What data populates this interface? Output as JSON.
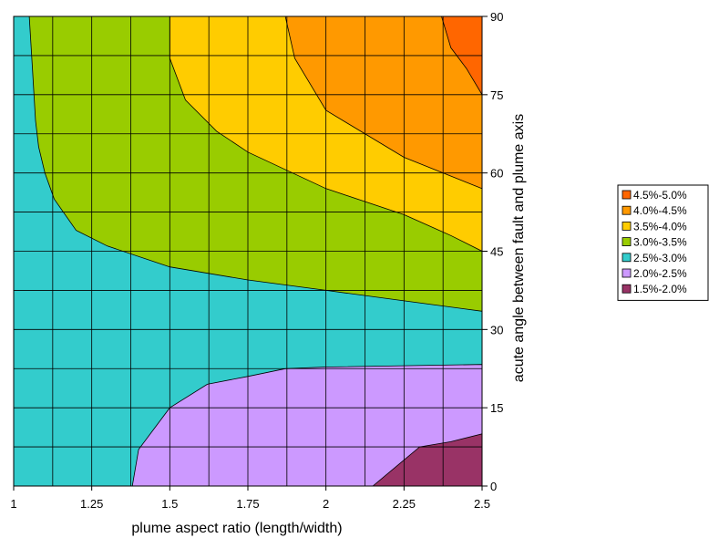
{
  "chart_data": {
    "type": "contour",
    "xlabel": "plume aspect ratio (length/width)",
    "ylabel": "acute angle between fault and plume axis",
    "xlim": [
      1,
      2.5
    ],
    "ylim": [
      0,
      90
    ],
    "x_ticks": [
      "1",
      "1.25",
      "1.5",
      "1.75",
      "2",
      "2.25",
      "2.5"
    ],
    "y_ticks": [
      "0",
      "15",
      "30",
      "45",
      "60",
      "75",
      "90"
    ],
    "grid": true,
    "legend_position": "right",
    "levels": [
      {
        "label": "4.5%-5.0%",
        "color": "#ff6600"
      },
      {
        "label": "4.0%-4.5%",
        "color": "#ff9900"
      },
      {
        "label": "3.5%-4.0%",
        "color": "#ffcc00"
      },
      {
        "label": "3.0%-3.5%",
        "color": "#99cc00"
      },
      {
        "label": "2.5%-3.0%",
        "color": "#33cccc"
      },
      {
        "label": "2.0%-2.5%",
        "color": "#cc99ff"
      },
      {
        "label": "1.5%-2.0%",
        "color": "#993366"
      }
    ],
    "regions": [
      {
        "level": "2.5%-3.0%",
        "boundary": [
          [
            1,
            0
          ],
          [
            2.5,
            0
          ],
          [
            2.5,
            90
          ],
          [
            1,
            90
          ]
        ]
      },
      {
        "level": "3.0%-3.5%",
        "boundary": [
          [
            1.05,
            90
          ],
          [
            1.06,
            80
          ],
          [
            1.07,
            70
          ],
          [
            1.08,
            65
          ],
          [
            1.1,
            60
          ],
          [
            1.13,
            55
          ],
          [
            1.2,
            49
          ],
          [
            1.3,
            46
          ],
          [
            1.5,
            42
          ],
          [
            1.75,
            39.5
          ],
          [
            2,
            37.5
          ],
          [
            2.25,
            35.5
          ],
          [
            2.5,
            33.5
          ],
          [
            2.5,
            90
          ]
        ]
      },
      {
        "level": "3.5%-4.0%",
        "boundary": [
          [
            1.5,
            90
          ],
          [
            1.5,
            82
          ],
          [
            1.55,
            74
          ],
          [
            1.65,
            68
          ],
          [
            1.75,
            64
          ],
          [
            2,
            57
          ],
          [
            2.25,
            52
          ],
          [
            2.4,
            48
          ],
          [
            2.5,
            45
          ],
          [
            2.5,
            90
          ]
        ]
      },
      {
        "level": "4.0%-4.5%",
        "boundary": [
          [
            1.87,
            90
          ],
          [
            1.9,
            82
          ],
          [
            2,
            72
          ],
          [
            2.25,
            63
          ],
          [
            2.5,
            57
          ],
          [
            2.5,
            90
          ]
        ]
      },
      {
        "level": "4.5%-5.0%",
        "boundary": [
          [
            2.37,
            90
          ],
          [
            2.4,
            84
          ],
          [
            2.45,
            80
          ],
          [
            2.5,
            75
          ],
          [
            2.5,
            90
          ]
        ]
      },
      {
        "level": "2.0%-2.5%",
        "boundary": [
          [
            1.38,
            0
          ],
          [
            1.4,
            7
          ],
          [
            1.5,
            15
          ],
          [
            1.62,
            19.5
          ],
          [
            1.75,
            21
          ],
          [
            1.87,
            22.5
          ],
          [
            2,
            22.8
          ],
          [
            2.5,
            23.3
          ],
          [
            2.5,
            0
          ]
        ]
      },
      {
        "level": "1.5%-2.0%",
        "boundary": [
          [
            2.15,
            0
          ],
          [
            2.3,
            7.5
          ],
          [
            2.4,
            8.5
          ],
          [
            2.5,
            10
          ],
          [
            2.5,
            0
          ]
        ]
      }
    ]
  }
}
